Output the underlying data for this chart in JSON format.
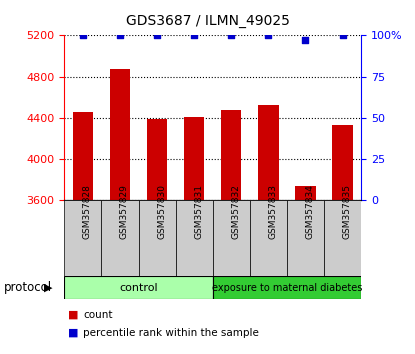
{
  "title": "GDS3687 / ILMN_49025",
  "samples": [
    "GSM357828",
    "GSM357829",
    "GSM357830",
    "GSM357831",
    "GSM357832",
    "GSM357833",
    "GSM357834",
    "GSM357835"
  ],
  "counts": [
    4455,
    4870,
    4390,
    4410,
    4475,
    4520,
    3740,
    4330
  ],
  "percentile_ranks": [
    100,
    100,
    100,
    100,
    100,
    100,
    97,
    100
  ],
  "bar_color": "#cc0000",
  "dot_color": "#0000cc",
  "ylim_left": [
    3600,
    5200
  ],
  "ylim_right": [
    0,
    100
  ],
  "yticks_left": [
    3600,
    4000,
    4400,
    4800,
    5200
  ],
  "yticks_right": [
    0,
    25,
    50,
    75,
    100
  ],
  "control_color": "#aaffaa",
  "treatment_color": "#33cc33",
  "control_label": "control",
  "treatment_label": "exposure to maternal diabetes",
  "n_control": 4,
  "n_treatment": 4,
  "protocol_label": "protocol",
  "legend_count_label": "count",
  "legend_pct_label": "percentile rank within the sample",
  "cell_bg_color": "#cccccc",
  "plot_bg_color": "#ffffff",
  "fig_width": 4.15,
  "fig_height": 3.54,
  "fig_dpi": 100
}
